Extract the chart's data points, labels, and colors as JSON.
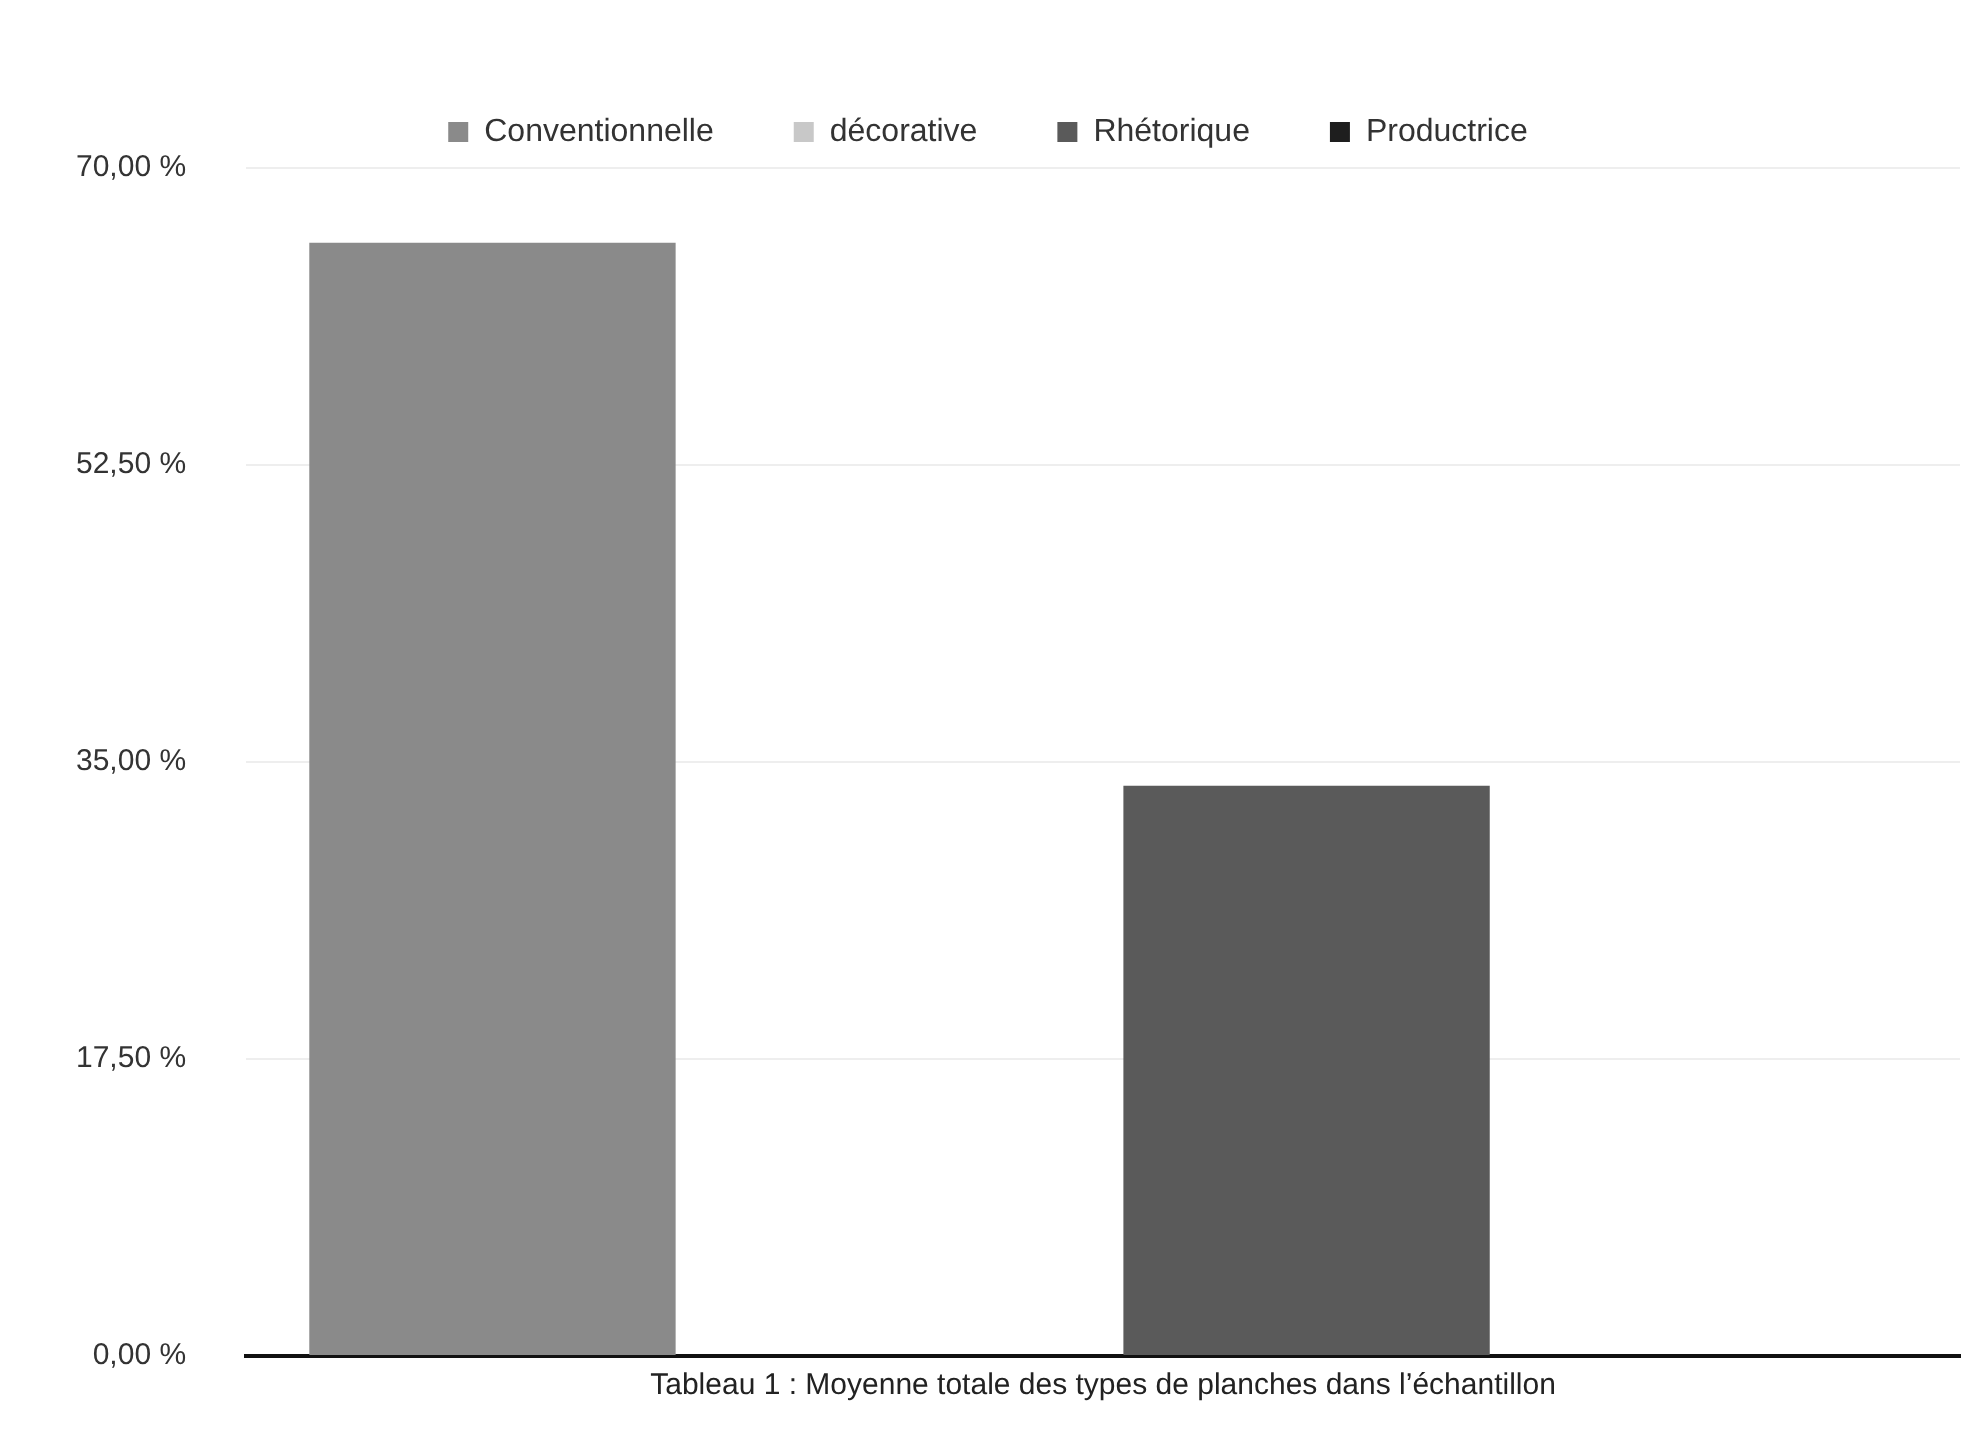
{
  "chart_data": {
    "type": "bar",
    "xlabel": "Tableau 1 : Moyenne totale des types de planches dans l’échantillon",
    "categories": [
      null
    ],
    "series": [
      {
        "name": "Conventionnelle",
        "color": "#8a8a8a",
        "values": [
          65.6
        ]
      },
      {
        "name": "décorative",
        "color": "#c8c8c8",
        "values": [
          0
        ]
      },
      {
        "name": "Rhétorique",
        "color": "#5a5a5a",
        "values": [
          33.6
        ]
      },
      {
        "name": "Productrice",
        "color": "#1e1e1e",
        "values": [
          0
        ]
      }
    ],
    "ylim": [
      0,
      70
    ],
    "yticks": [
      {
        "value": 0,
        "label": "0,00 %"
      },
      {
        "value": 17.5,
        "label": "17,50 %"
      },
      {
        "value": 35,
        "label": "35,00 %"
      },
      {
        "value": 52.5,
        "label": "52,50 %"
      },
      {
        "value": 70,
        "label": "70,00 %"
      }
    ],
    "grid": "y",
    "legend": "top"
  }
}
